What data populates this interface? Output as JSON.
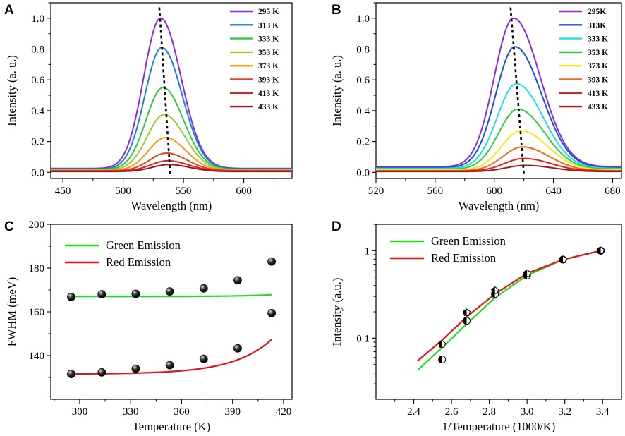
{
  "figure": {
    "panels": [
      {
        "id": "A",
        "label": "A"
      },
      {
        "id": "B",
        "label": "B"
      },
      {
        "id": "C",
        "label": "C"
      },
      {
        "id": "D",
        "label": "D"
      }
    ]
  },
  "chart_data": [
    {
      "id": "A",
      "type": "line",
      "title": "",
      "xlabel": "Wavelength (nm)",
      "ylabel": "Intensity (a. u.)",
      "xlim": [
        440,
        640
      ],
      "ylim": [
        -0.04,
        1.1
      ],
      "xticks": [
        450,
        500,
        550,
        600
      ],
      "yticks": [
        0.0,
        0.2,
        0.4,
        0.6,
        0.8,
        1.0
      ],
      "ytick_labels": [
        "0.0",
        "0.2",
        "0.4",
        "0.6",
        "0.8",
        "1.0"
      ],
      "legend_position": "top-right",
      "shape": {
        "kind": "gaussian",
        "baseline": 0.0,
        "sigma_left": 14,
        "sigma_right": 17
      },
      "series": [
        {
          "name": "295 K",
          "color": "#8a2be2",
          "peak_x": 531,
          "peak_y": 1.0,
          "baseline": 0.025
        },
        {
          "name": "313 K",
          "color": "#1e7fd6",
          "peak_x": 532,
          "peak_y": 0.81,
          "baseline": 0.02
        },
        {
          "name": "333 K",
          "color": "#2ecc40",
          "peak_x": 533,
          "peak_y": 0.55,
          "baseline": 0.018
        },
        {
          "name": "353 K",
          "color": "#9acd32",
          "peak_x": 534,
          "peak_y": 0.375,
          "baseline": 0.015
        },
        {
          "name": "373 K",
          "color": "#f39c12",
          "peak_x": 535,
          "peak_y": 0.225,
          "baseline": 0.012
        },
        {
          "name": "393 K",
          "color": "#e8402a",
          "peak_x": 536,
          "peak_y": 0.125,
          "baseline": 0.01
        },
        {
          "name": "413 K",
          "color": "#e02020",
          "peak_x": 537,
          "peak_y": 0.075,
          "baseline": 0.008
        },
        {
          "name": "433 K",
          "color": "#a01818",
          "peak_x": 538,
          "peak_y": 0.05,
          "baseline": 0.005
        }
      ],
      "guide_line": {
        "x_start": 530,
        "y_start": 1.07,
        "x_end": 539,
        "y_end": -0.01
      }
    },
    {
      "id": "B",
      "type": "line",
      "title": "",
      "xlabel": "Wavelength (nm)",
      "ylabel": "Intensity (a. u.)",
      "xlim": [
        520,
        686
      ],
      "ylim": [
        -0.04,
        1.1
      ],
      "xticks": [
        520,
        560,
        600,
        640,
        680
      ],
      "yticks": [
        0.0,
        0.2,
        0.4,
        0.6,
        0.8,
        1.0
      ],
      "ytick_labels": [
        "0.0",
        "0.2",
        "0.4",
        "0.6",
        "0.8",
        "1.0"
      ],
      "legend_position": "top-right",
      "shape": {
        "kind": "gaussian",
        "baseline": 0.0,
        "sigma_left": 13,
        "sigma_right": 18
      },
      "series": [
        {
          "name": "295K",
          "color": "#8a2be2",
          "peak_x": 613,
          "peak_y": 1.0,
          "baseline": 0.035
        },
        {
          "name": "313K",
          "color": "#1a4fd6",
          "peak_x": 614,
          "peak_y": 0.815,
          "baseline": 0.03
        },
        {
          "name": "333 K",
          "color": "#1ee0e0",
          "peak_x": 615,
          "peak_y": 0.575,
          "baseline": 0.025
        },
        {
          "name": "353 K",
          "color": "#2ecc40",
          "peak_x": 616,
          "peak_y": 0.41,
          "baseline": 0.02
        },
        {
          "name": "373 K",
          "color": "#ffe21a",
          "peak_x": 618,
          "peak_y": 0.27,
          "baseline": 0.015
        },
        {
          "name": "393 K",
          "color": "#f06a1a",
          "peak_x": 619,
          "peak_y": 0.165,
          "baseline": 0.01
        },
        {
          "name": "413 K",
          "color": "#e02020",
          "peak_x": 620,
          "peak_y": 0.09,
          "baseline": 0.008
        },
        {
          "name": "433 K",
          "color": "#a01818",
          "peak_x": 621,
          "peak_y": 0.045,
          "baseline": 0.005
        }
      ],
      "guide_line": {
        "x_start": 611,
        "y_start": 1.07,
        "x_end": 620,
        "y_end": -0.01
      }
    },
    {
      "id": "C",
      "type": "scatter",
      "title": "",
      "xlabel": "Temperature (K)",
      "ylabel": "FWHM (meV)",
      "xlim": [
        283,
        425
      ],
      "ylim": [
        120,
        200
      ],
      "xticks": [
        300,
        330,
        360,
        390,
        420
      ],
      "yticks": [
        140,
        160,
        180,
        200
      ],
      "legend_position": "top-left",
      "series": [
        {
          "name": "Green Emission",
          "color": "#22dd22",
          "x": [
            295,
            313,
            333,
            353,
            373,
            393,
            413
          ],
          "y": [
            166.8,
            168.0,
            168.2,
            169.3,
            170.7,
            174.4,
            183.0
          ],
          "fit": {
            "a": 167.0,
            "b": 0.0023,
            "c": 0.05,
            "x0": 295
          }
        },
        {
          "name": "Red Emission",
          "color": "#e01515",
          "x": [
            295,
            313,
            333,
            353,
            373,
            393,
            413
          ],
          "y": [
            131.6,
            132.3,
            134.0,
            135.6,
            138.5,
            143.3,
            159.4
          ],
          "fit": {
            "a": 131.6,
            "b": 0.088,
            "c": 0.044,
            "x0": 295
          }
        }
      ]
    },
    {
      "id": "D",
      "type": "scatter",
      "title": "",
      "xlabel": "1/Temperature (1000/K)",
      "ylabel": "Intensity (a.u.)",
      "xlim": [
        2.2,
        3.5
      ],
      "ylim": [
        0.02,
        2.0
      ],
      "yscale": "log",
      "xticks": [
        2.4,
        2.6,
        2.8,
        3.0,
        3.2,
        3.4
      ],
      "xtick_labels": [
        "2.4",
        "2.6",
        "2.8",
        "3.0",
        "3.2",
        "3.4"
      ],
      "yticks": [
        0.1,
        1
      ],
      "ytick_labels": [
        "0.1",
        "1"
      ],
      "legend_position": "top-left",
      "series": [
        {
          "name": "Green Emission",
          "color": "#22dd22",
          "x": [
            2.55,
            2.68,
            2.83,
            3.0,
            3.19,
            3.39
          ],
          "y": [
            0.057,
            0.158,
            0.32,
            0.52,
            0.79,
            1.0
          ],
          "fit_x": [
            2.42,
            2.55,
            2.68,
            2.83,
            3.0,
            3.19,
            3.39
          ],
          "fit_y": [
            0.043,
            0.078,
            0.145,
            0.29,
            0.52,
            0.79,
            1.0
          ]
        },
        {
          "name": "Red Emission",
          "color": "#e01515",
          "x": [
            2.55,
            2.68,
            2.83,
            3.0,
            3.19,
            3.39
          ],
          "y": [
            0.085,
            0.196,
            0.35,
            0.55,
            0.79,
            1.0
          ],
          "fit_x": [
            2.42,
            2.55,
            2.68,
            2.83,
            3.0,
            3.19,
            3.39
          ],
          "fit_y": [
            0.055,
            0.095,
            0.175,
            0.32,
            0.55,
            0.79,
            1.0
          ]
        }
      ]
    }
  ]
}
